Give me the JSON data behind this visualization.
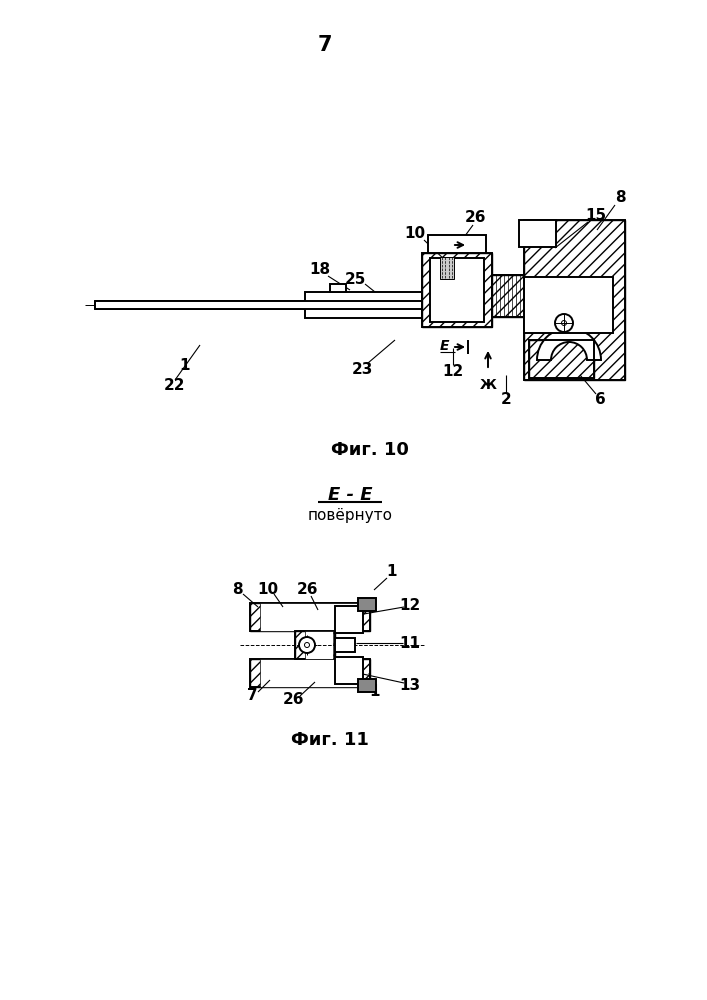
{
  "page_number": "7",
  "fig10_caption": "Фиг. 10",
  "fig11_caption": "Фиг. 11",
  "fig11_title": "Е - Е",
  "fig11_subtitle": "повёрнуто",
  "background_color": "#ffffff",
  "line_color": "#000000",
  "lw": 1.4,
  "lw_thin": 0.7,
  "lw_med": 1.0
}
